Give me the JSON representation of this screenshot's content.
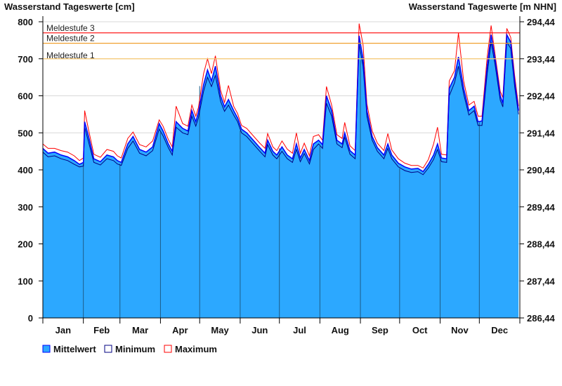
{
  "chart_data": {
    "type": "area",
    "title_left": "Wasserstand Tageswerte [cm]",
    "title_right": "Wasserstand Tageswerte [m NHN]",
    "ylim": [
      0,
      800
    ],
    "yticks": [
      "0",
      "100",
      "200",
      "300",
      "400",
      "500",
      "600",
      "700",
      "800"
    ],
    "yticks_right": [
      "286,44",
      "287,44",
      "288,44",
      "289,44",
      "290,44",
      "291,44",
      "292,44",
      "293,44",
      "294,44"
    ],
    "months": [
      "Jan",
      "Feb",
      "Mar",
      "Apr",
      "May",
      "Jun",
      "Jul",
      "Aug",
      "Sep",
      "Oct",
      "Nov",
      "Dec"
    ],
    "month_start_days": [
      1,
      32,
      60,
      91,
      121,
      152,
      182,
      213,
      244,
      274,
      305,
      335,
      366
    ],
    "thresholds": [
      {
        "label": "Meldestufe 1",
        "value": 700,
        "color": "#f8c870"
      },
      {
        "label": "Meldestufe 2",
        "value": 742,
        "color": "#f0a030"
      },
      {
        "label": "Meldestufe 3",
        "value": 770,
        "color": "#ff0000"
      }
    ],
    "legend": [
      {
        "label": "Mittelwert",
        "color": "#2ca8ff",
        "border": "#0000ff"
      },
      {
        "label": "Minimum",
        "color": "#ffffff",
        "border": "#000080"
      },
      {
        "label": "Maximum",
        "color": "#ffffff",
        "border": "#ff0000"
      }
    ],
    "day": [
      1,
      5,
      10,
      15,
      20,
      25,
      29,
      32,
      33,
      36,
      40,
      45,
      50,
      55,
      58,
      61,
      66,
      70,
      75,
      80,
      85,
      90,
      93,
      97,
      100,
      103,
      108,
      112,
      115,
      118,
      120,
      124,
      127,
      130,
      133,
      137,
      140,
      143,
      147,
      150,
      153,
      157,
      162,
      167,
      171,
      173,
      177,
      180,
      184,
      188,
      192,
      195,
      198,
      201,
      205,
      208,
      212,
      215,
      218,
      222,
      226,
      230,
      232,
      236,
      240,
      243,
      246,
      249,
      253,
      257,
      262,
      265,
      268,
      273,
      278,
      283,
      288,
      292,
      296,
      300,
      303,
      306,
      310,
      312,
      316,
      319,
      323,
      327,
      331,
      334,
      337,
      341,
      344,
      347,
      351,
      353,
      356,
      359,
      362,
      365
    ],
    "series": [
      {
        "name": "Mittelwert",
        "values": [
          458,
          445,
          448,
          440,
          435,
          425,
          415,
          420,
          530,
          490,
          430,
          422,
          440,
          435,
          425,
          420,
          470,
          490,
          455,
          448,
          462,
          525,
          505,
          470,
          450,
          530,
          512,
          505,
          560,
          530,
          555,
          630,
          670,
          640,
          680,
          600,
          570,
          590,
          560,
          540,
          510,
          500,
          480,
          460,
          445,
          480,
          450,
          440,
          462,
          440,
          430,
          470,
          432,
          455,
          425,
          470,
          480,
          468,
          600,
          560,
          480,
          470,
          500,
          452,
          440,
          762,
          700,
          560,
          490,
          460,
          440,
          470,
          440,
          418,
          408,
          402,
          404,
          395,
          415,
          440,
          470,
          432,
          430,
          620,
          650,
          705,
          620,
          560,
          572,
          530,
          532,
          680,
          765,
          700,
          600,
          580,
          765,
          745,
          640,
          560
        ]
      },
      {
        "name": "Minimum",
        "values": [
          448,
          435,
          438,
          430,
          425,
          415,
          408,
          410,
          515,
          475,
          420,
          413,
          430,
          425,
          416,
          412,
          458,
          478,
          445,
          438,
          452,
          510,
          492,
          460,
          440,
          515,
          500,
          495,
          545,
          518,
          540,
          612,
          650,
          625,
          655,
          585,
          558,
          575,
          548,
          530,
          500,
          490,
          470,
          450,
          435,
          468,
          440,
          430,
          450,
          430,
          420,
          455,
          422,
          444,
          416,
          455,
          470,
          458,
          580,
          545,
          470,
          460,
          488,
          442,
          430,
          740,
          680,
          545,
          480,
          450,
          430,
          458,
          430,
          408,
          398,
          393,
          395,
          387,
          405,
          428,
          455,
          422,
          420,
          600,
          635,
          680,
          605,
          548,
          560,
          520,
          520,
          660,
          745,
          685,
          588,
          570,
          745,
          728,
          625,
          550
        ]
      },
      {
        "name": "Maximum",
        "values": [
          470,
          458,
          458,
          452,
          448,
          438,
          425,
          432,
          560,
          508,
          442,
          434,
          455,
          450,
          438,
          432,
          485,
          502,
          468,
          462,
          478,
          535,
          518,
          482,
          462,
          572,
          525,
          518,
          575,
          545,
          568,
          660,
          700,
          660,
          708,
          615,
          582,
          628,
          572,
          552,
          520,
          512,
          492,
          472,
          458,
          498,
          462,
          452,
          478,
          456,
          445,
          500,
          445,
          472,
          438,
          490,
          495,
          480,
          625,
          575,
          495,
          485,
          528,
          465,
          452,
          795,
          738,
          578,
          505,
          472,
          452,
          498,
          454,
          430,
          418,
          412,
          412,
          405,
          428,
          470,
          515,
          442,
          440,
          640,
          668,
          770,
          640,
          575,
          585,
          545,
          545,
          705,
          790,
          712,
          612,
          595,
          782,
          758,
          655,
          572
        ]
      }
    ]
  }
}
